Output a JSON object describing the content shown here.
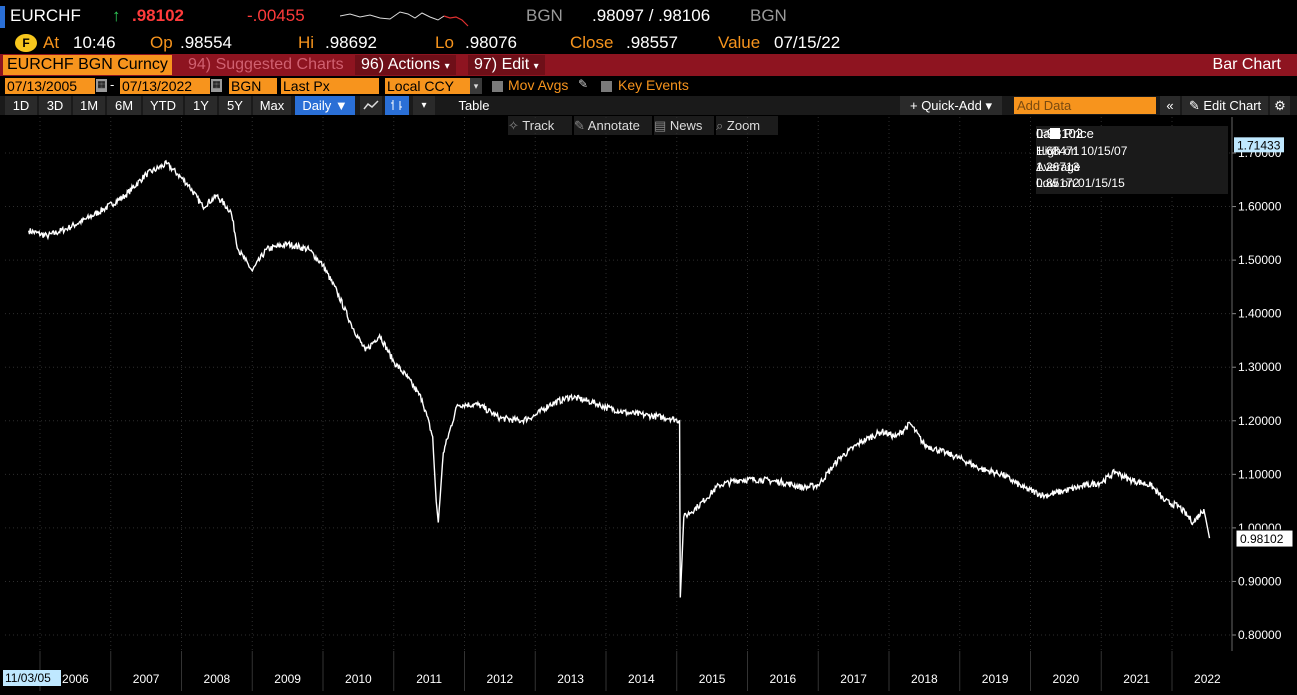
{
  "header": {
    "ticker": "EURCHF",
    "arrow": "↑",
    "last": ".98102",
    "change": "-.00455",
    "source": "BGN",
    "bid_ask": ".98097 / .98106",
    "source2": "BGN",
    "at_label": "At",
    "time": "10:46",
    "open_label": "Op",
    "open": ".98554",
    "high_label": "Hi",
    "high": ".98692",
    "low_label": "Lo",
    "low": ".98076",
    "close_label": "Close",
    "close": ".98557",
    "value_label": "Value",
    "value_date": "07/15/22"
  },
  "toolbar": {
    "security": "EURCHF BGN Curncy",
    "suggested": "94) Suggested Charts",
    "actions": "96) Actions",
    "edit": "97) Edit",
    "chart_type": "Bar Chart"
  },
  "controls": {
    "start_date": "07/13/2005",
    "dash": "-",
    "end_date": "07/13/2022",
    "source": "BGN",
    "field": "Last Px",
    "currency": "Local CCY",
    "mov_avgs": "Mov Avgs",
    "key_events": "Key Events",
    "ranges": [
      "1D",
      "3D",
      "1M",
      "6M",
      "YTD",
      "1Y",
      "5Y",
      "Max"
    ],
    "frequency": "Daily ▼",
    "table": "Table",
    "quick_add": "+ Quick-Add ▾",
    "add_data_placeholder": "Add Data",
    "edit_chart": "Edit Chart"
  },
  "tools": {
    "track": "Track",
    "annotate": "Annotate",
    "news": "News",
    "zoom": "Zoom"
  },
  "legend": {
    "last_label": "Last Price",
    "last_value": "0.98102",
    "high_label": "High on 10/15/07",
    "high_value": "1.68471",
    "avg_label": "Average",
    "avg_value": "1.26713",
    "low_label": "Low on 01/15/15",
    "low_value": "0.85172"
  },
  "chart_data": {
    "type": "line",
    "y_ticks": [
      "1.70000",
      "1.60000",
      "1.50000",
      "1.40000",
      "1.30000",
      "1.20000",
      "1.10000",
      "1.00000",
      "0.90000",
      "0.80000"
    ],
    "ylim": [
      0.77,
      1.73
    ],
    "x_tick_labels": [
      "2006",
      "2007",
      "2008",
      "2009",
      "2010",
      "2011",
      "2012",
      "2013",
      "2014",
      "2015",
      "2016",
      "2017",
      "2018",
      "2019",
      "2020",
      "2021",
      "2022"
    ],
    "start_label": "11/03/05",
    "top_marker": "1.71433",
    "last_marker": "0.98102",
    "series": [
      {
        "x": [
          2005.84,
          2006.1,
          2006.4,
          2006.7,
          2006.9,
          2007.2,
          2007.5,
          2007.79,
          2007.95,
          2008.1,
          2008.3,
          2008.5,
          2008.7,
          2008.8,
          2008.9,
          2009.0,
          2009.2,
          2009.5,
          2009.8,
          2010.0,
          2010.2,
          2010.4,
          2010.6,
          2010.8,
          2011.0,
          2011.2,
          2011.4,
          2011.55,
          2011.6,
          2011.63,
          2011.7,
          2011.9,
          2012.2,
          2012.5,
          2012.8,
          2013.0,
          2013.2,
          2013.5,
          2013.8,
          2014.0,
          2014.3,
          2014.6,
          2014.9,
          2015.04,
          2015.05,
          2015.1,
          2015.3,
          2015.6,
          2015.9,
          2016.2,
          2016.5,
          2016.8,
          2017.0,
          2017.3,
          2017.6,
          2017.9,
          2018.1,
          2018.3,
          2018.5,
          2018.8,
          2019.0,
          2019.3,
          2019.6,
          2019.9,
          2020.2,
          2020.5,
          2020.8,
          2021.0,
          2021.2,
          2021.4,
          2021.7,
          2021.9,
          2022.1,
          2022.3,
          2022.45,
          2022.53
        ],
        "y": [
          1.555,
          1.545,
          1.56,
          1.58,
          1.595,
          1.62,
          1.66,
          1.68,
          1.66,
          1.64,
          1.6,
          1.62,
          1.59,
          1.52,
          1.5,
          1.48,
          1.52,
          1.53,
          1.52,
          1.49,
          1.44,
          1.38,
          1.33,
          1.36,
          1.31,
          1.28,
          1.24,
          1.17,
          1.05,
          1.01,
          1.14,
          1.23,
          1.23,
          1.205,
          1.2,
          1.21,
          1.23,
          1.245,
          1.235,
          1.225,
          1.215,
          1.21,
          1.205,
          1.2,
          0.87,
          1.02,
          1.04,
          1.08,
          1.09,
          1.09,
          1.085,
          1.075,
          1.08,
          1.13,
          1.16,
          1.18,
          1.17,
          1.195,
          1.155,
          1.14,
          1.13,
          1.11,
          1.1,
          1.075,
          1.06,
          1.07,
          1.08,
          1.085,
          1.105,
          1.09,
          1.08,
          1.05,
          1.04,
          1.01,
          1.035,
          0.981
        ]
      }
    ]
  }
}
